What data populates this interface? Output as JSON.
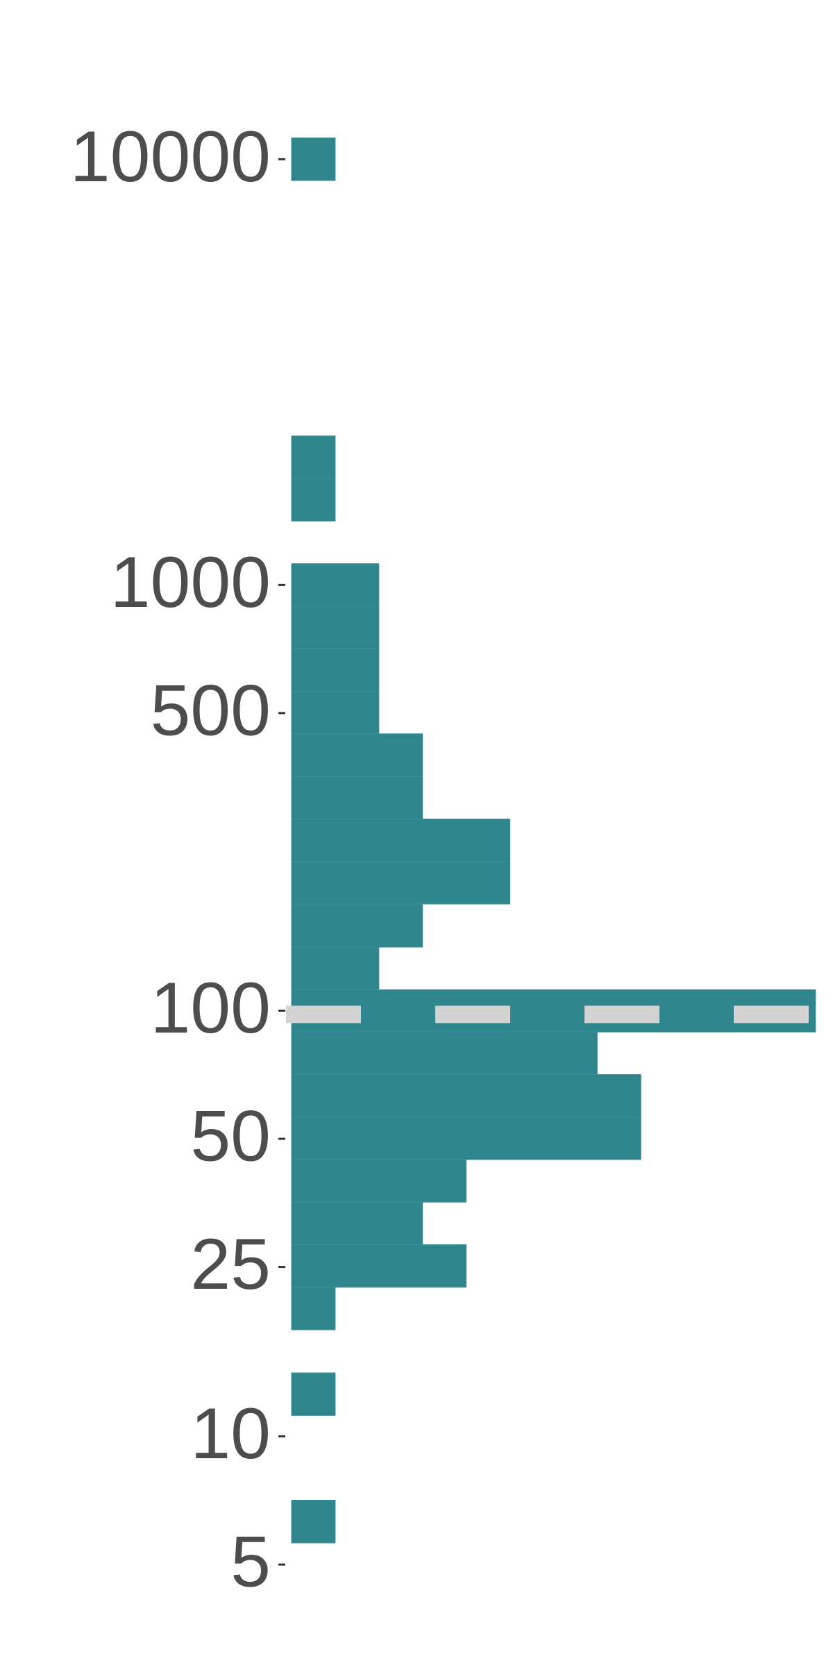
{
  "chart_data": {
    "type": "histogram",
    "orientation": "horizontal",
    "log_scale": "y",
    "bins": [
      5.62,
      7.08,
      8.91,
      11.2,
      14.1,
      17.8,
      22.4,
      28.2,
      35.5,
      44.7,
      56.2,
      70.8,
      89.1,
      112,
      141,
      178,
      224,
      282,
      355,
      447,
      562,
      708,
      891,
      1122,
      1413,
      1778,
      2239,
      2818,
      3548,
      4467,
      5623,
      7079,
      8913,
      11220
    ],
    "values": [
      1,
      0,
      0,
      1,
      0,
      1,
      4,
      3,
      4,
      8,
      8,
      7,
      12,
      2,
      3,
      5,
      5,
      3,
      3,
      2,
      2,
      2,
      2,
      0,
      1,
      1,
      0,
      0,
      0,
      0,
      0,
      0,
      1
    ],
    "color": "#2e868c",
    "xlim": [
      0,
      12.4
    ],
    "ylim": [
      2.88,
      23660
    ],
    "yticks": [
      5,
      10,
      25,
      50,
      100,
      500,
      1000,
      10000
    ],
    "reference_line": {
      "value": 98,
      "color": "#d3d3d3"
    }
  }
}
